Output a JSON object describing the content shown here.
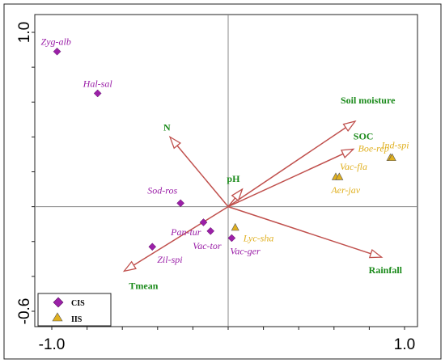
{
  "chart_data": {
    "type": "scatter",
    "title": "",
    "xlabel": "",
    "ylabel": "",
    "xlim": [
      -1.0,
      1.0
    ],
    "ylim": [
      -0.6,
      1.0
    ],
    "x_tick_labels": [
      "-1.0",
      "1.0"
    ],
    "y_tick_labels": [
      "-0.6",
      "1.0"
    ],
    "grid": false,
    "legend_position": "bottom-left",
    "colors": {
      "vector": "#c0504d",
      "vector_label": "#1a8a1a",
      "cis": "#9b20a8",
      "iis": "#e0b020",
      "iis_label": "#e0b020",
      "cis_label": "#9b20a8"
    },
    "vectors": [
      {
        "name": "Soil moisture",
        "x": 0.72,
        "y": 0.49
      },
      {
        "name": "SOC",
        "x": 0.71,
        "y": 0.33
      },
      {
        "name": "N",
        "x": -0.33,
        "y": 0.4
      },
      {
        "name": "pH",
        "x": 0.08,
        "y": 0.1
      },
      {
        "name": "Rainfall",
        "x": 0.87,
        "y": -0.29
      },
      {
        "name": "Tmean",
        "x": -0.59,
        "y": -0.37
      }
    ],
    "series": [
      {
        "name": "CIS",
        "marker": "diamond",
        "points": [
          {
            "label": "Zyg-alb",
            "x": -0.97,
            "y": 0.89
          },
          {
            "label": "Hal-sal",
            "x": -0.74,
            "y": 0.65
          },
          {
            "label": "Sod-ros",
            "x": -0.27,
            "y": 0.02
          },
          {
            "label": "Pan-tur",
            "x": -0.14,
            "y": -0.09
          },
          {
            "label": "Vac-tor",
            "x": -0.1,
            "y": -0.14
          },
          {
            "label": "Zil-spi",
            "x": -0.43,
            "y": -0.23
          },
          {
            "label": "Vac-ger",
            "x": 0.02,
            "y": -0.18
          }
        ]
      },
      {
        "name": "IIS",
        "marker": "triangle",
        "points": [
          {
            "label": "Ind-spi",
            "x": 0.92,
            "y": 0.28
          },
          {
            "label": "Vac-fla",
            "x": 0.61,
            "y": 0.17
          },
          {
            "label": "Boe-rep",
            "x": 0.93,
            "y": 0.28
          },
          {
            "label": "Aer-jav",
            "x": 0.63,
            "y": 0.17
          },
          {
            "label": "Lyc-sha",
            "x": 0.04,
            "y": -0.12
          }
        ]
      }
    ]
  },
  "legend": {
    "items": [
      {
        "label": "CIS",
        "marker": "diamond"
      },
      {
        "label": "IIS",
        "marker": "triangle"
      }
    ]
  }
}
